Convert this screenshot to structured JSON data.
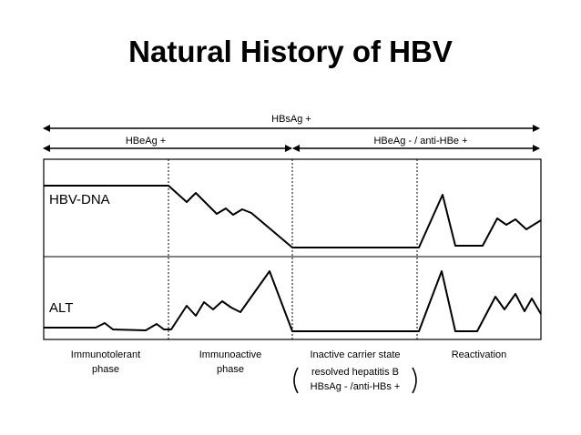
{
  "title": "Natural History of HBV",
  "top_arrow": {
    "label": "HBsAg +"
  },
  "sub_arrows": [
    {
      "label": "HBeAg +"
    },
    {
      "label": "HBeAg - / anti-HBe +"
    }
  ],
  "panels": {
    "upper_label": "HBV-DNA",
    "lower_label": "ALT"
  },
  "phases": [
    {
      "line1": "Immunotolerant",
      "line2": "phase"
    },
    {
      "line1": "Immunoactive",
      "line2": "phase"
    },
    {
      "line1": "Inactive carrier state",
      "note1": "resolved hepatitis B",
      "note2": "HBsAg - /anti-HBs +"
    },
    {
      "line1": "Reactivation"
    }
  ]
}
